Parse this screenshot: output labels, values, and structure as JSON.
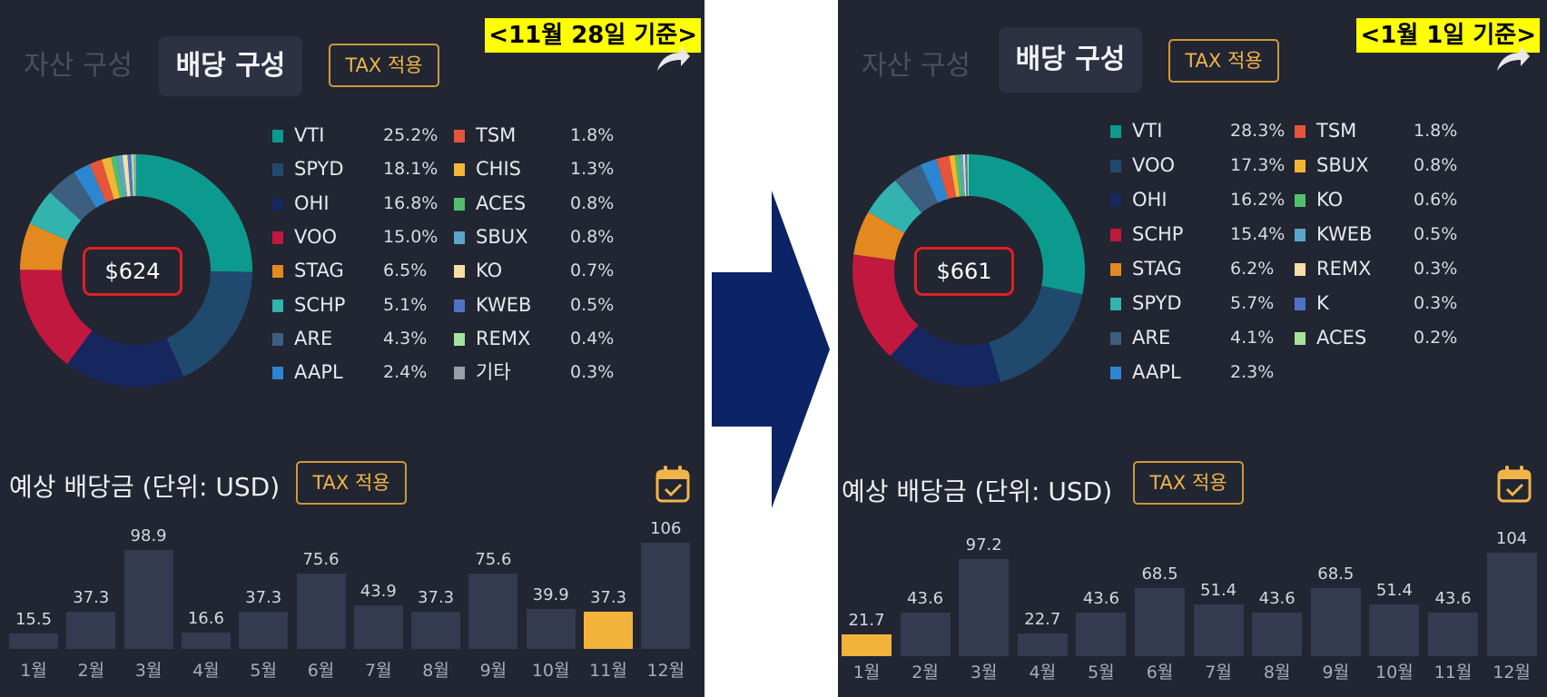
{
  "left": {
    "date_label": "<11월 28일 기준>",
    "tabs": {
      "asset": "자산 구성",
      "dividend": "배당 구성"
    },
    "tax_label": "TAX 적용",
    "total": "$624",
    "legend_left": [
      {
        "name": "VTI",
        "pct": "25.2%",
        "color": "#0d9a8e"
      },
      {
        "name": "SPYD",
        "pct": "18.1%",
        "color": "#1f4a6e"
      },
      {
        "name": "OHI",
        "pct": "16.8%",
        "color": "#16265f"
      },
      {
        "name": "VOO",
        "pct": "15.0%",
        "color": "#c0183f"
      },
      {
        "name": "STAG",
        "pct": "6.5%",
        "color": "#e3891f"
      },
      {
        "name": "SCHP",
        "pct": "5.1%",
        "color": "#32b3ae"
      },
      {
        "name": "ARE",
        "pct": "4.3%",
        "color": "#3c5f80"
      },
      {
        "name": "AAPL",
        "pct": "2.4%",
        "color": "#2d86d1"
      }
    ],
    "legend_right": [
      {
        "name": "TSM",
        "pct": "1.8%",
        "color": "#e4553a"
      },
      {
        "name": "CHIS",
        "pct": "1.3%",
        "color": "#f3b534"
      },
      {
        "name": "ACES",
        "pct": "0.8%",
        "color": "#51c06d"
      },
      {
        "name": "SBUX",
        "pct": "0.8%",
        "color": "#5aa6c8"
      },
      {
        "name": "KO",
        "pct": "0.7%",
        "color": "#f6dfa4"
      },
      {
        "name": "KWEB",
        "pct": "0.5%",
        "color": "#4f72c6"
      },
      {
        "name": "REMX",
        "pct": "0.4%",
        "color": "#a5e39a"
      },
      {
        "name": "기타",
        "pct": "0.3%",
        "color": "#9aa0a8"
      }
    ],
    "forecast_title": "예상 배당금 (단위: USD)",
    "bars": {
      "months": [
        "1월",
        "2월",
        "3월",
        "4월",
        "5월",
        "6월",
        "7월",
        "8월",
        "9월",
        "10월",
        "11월",
        "12월"
      ],
      "values": [
        15.5,
        37.3,
        98.9,
        16.6,
        37.3,
        75.6,
        43.9,
        37.3,
        75.6,
        39.9,
        37.3,
        106
      ],
      "labels": [
        "15.5",
        "37.3",
        "98.9",
        "16.6",
        "37.3",
        "75.6",
        "43.9",
        "37.3",
        "75.6",
        "39.9",
        "37.3",
        "106"
      ],
      "highlight_index": 10
    }
  },
  "right": {
    "date_label": "<1월 1일 기준>",
    "tabs": {
      "asset": "자산 구성",
      "dividend": "배당 구성"
    },
    "tax_label": "TAX 적용",
    "total": "$661",
    "legend_left": [
      {
        "name": "VTI",
        "pct": "28.3%",
        "color": "#0d9a8e"
      },
      {
        "name": "VOO",
        "pct": "17.3%",
        "color": "#1f4a6e"
      },
      {
        "name": "OHI",
        "pct": "16.2%",
        "color": "#16265f"
      },
      {
        "name": "SCHP",
        "pct": "15.4%",
        "color": "#c0183f"
      },
      {
        "name": "STAG",
        "pct": "6.2%",
        "color": "#e3891f"
      },
      {
        "name": "SPYD",
        "pct": "5.7%",
        "color": "#32b3ae"
      },
      {
        "name": "ARE",
        "pct": "4.1%",
        "color": "#3c5f80"
      },
      {
        "name": "AAPL",
        "pct": "2.3%",
        "color": "#2d86d1"
      }
    ],
    "legend_right": [
      {
        "name": "TSM",
        "pct": "1.8%",
        "color": "#e4553a"
      },
      {
        "name": "SBUX",
        "pct": "0.8%",
        "color": "#f3b534"
      },
      {
        "name": "KO",
        "pct": "0.6%",
        "color": "#51c06d"
      },
      {
        "name": "KWEB",
        "pct": "0.5%",
        "color": "#5aa6c8"
      },
      {
        "name": "REMX",
        "pct": "0.3%",
        "color": "#f6dfa4"
      },
      {
        "name": "K",
        "pct": "0.3%",
        "color": "#4f72c6"
      },
      {
        "name": "ACES",
        "pct": "0.2%",
        "color": "#a5e39a"
      }
    ],
    "forecast_title": "예상 배당금 (단위: USD)",
    "bars": {
      "months": [
        "1월",
        "2월",
        "3월",
        "4월",
        "5월",
        "6월",
        "7월",
        "8월",
        "9월",
        "10월",
        "11월",
        "12월"
      ],
      "values": [
        21.7,
        43.6,
        97.2,
        22.7,
        43.6,
        68.5,
        51.4,
        43.6,
        68.5,
        51.4,
        43.6,
        104
      ],
      "labels": [
        "21.7",
        "43.6",
        "97.2",
        "22.7",
        "43.6",
        "68.5",
        "51.4",
        "43.6",
        "68.5",
        "51.4",
        "43.6",
        "104"
      ],
      "highlight_index": 0
    }
  },
  "colors": {
    "panel_bg": "#222532",
    "bar": "#343a4f",
    "highlight": "#f2b33b",
    "accent": "#f0b54a",
    "arrow": "#0c2366"
  }
}
